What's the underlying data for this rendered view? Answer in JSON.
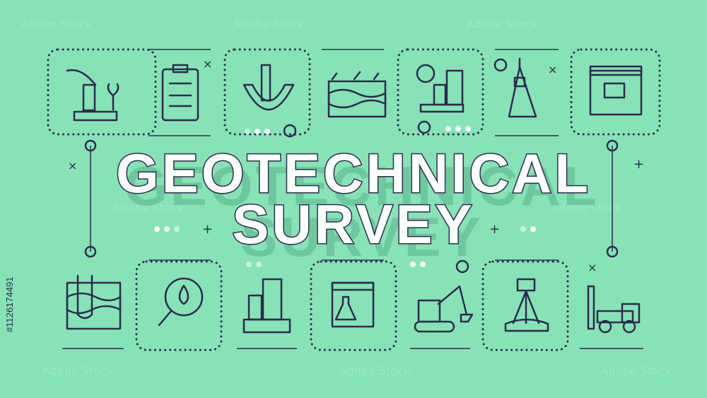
{
  "banner": {
    "title_lines": [
      "GEOTECHNICAL",
      "SURVEY"
    ],
    "watermark": "Adobe Stock",
    "stock_id": "#1126174491"
  }
}
